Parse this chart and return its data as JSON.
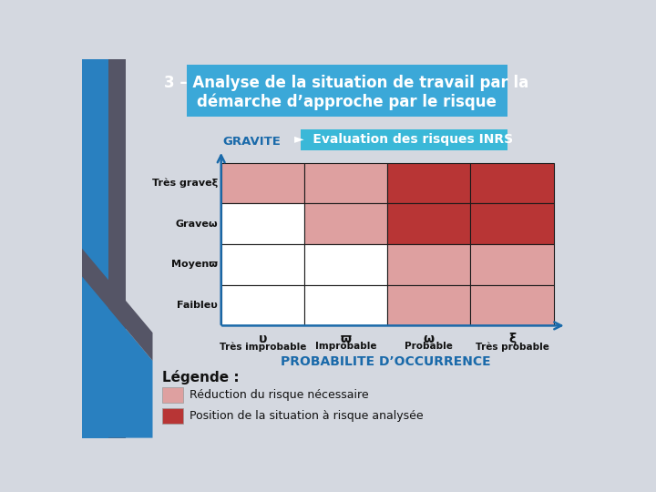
{
  "title_line1": "3 – Analyse de la situation de travail par la",
  "title_line2": "démarche d’approche par le risque",
  "subtitle": "►  Evaluation des risques INRS",
  "gravite_label": "GRAVITE",
  "probabilite_label": "PROBABILITE D’OCCURRENCE",
  "legende_label": "Légende :",
  "legend_item1": "Réduction du risque nécessaire",
  "legend_item2": "Position de la situation à risque analysée",
  "row_labels": [
    "Très graveξ",
    "Graveω",
    "Moyenϖ",
    "Faibleυ"
  ],
  "col_labels_sym": [
    "υ",
    "ϖ",
    "ω",
    "ξ"
  ],
  "col_labels_text": [
    "Très improbable",
    "Improbable",
    "Probable",
    "Très probable"
  ],
  "grid_colors": [
    [
      "#dea0a0",
      "#dea0a0",
      "#b83535",
      "#b83535"
    ],
    [
      "#ffffff",
      "#dea0a0",
      "#b83535",
      "#b83535"
    ],
    [
      "#ffffff",
      "#ffffff",
      "#dea0a0",
      "#dea0a0"
    ],
    [
      "#ffffff",
      "#ffffff",
      "#dea0a0",
      "#dea0a0"
    ]
  ],
  "bg_color": "#d4d8e0",
  "title_bg": "#3ba8d8",
  "subtitle_bg": "#3ab8d8",
  "light_pink": "#dea0a0",
  "dark_red": "#b83535",
  "grid_line_color": "#1a1a1a",
  "axis_color": "#1a6aaa",
  "gravite_color": "#1a6aaa",
  "prob_color": "#1a6aaa",
  "legende_color": "#111111",
  "stripe_blue": "#2980c0",
  "stripe_dark": "#555566"
}
